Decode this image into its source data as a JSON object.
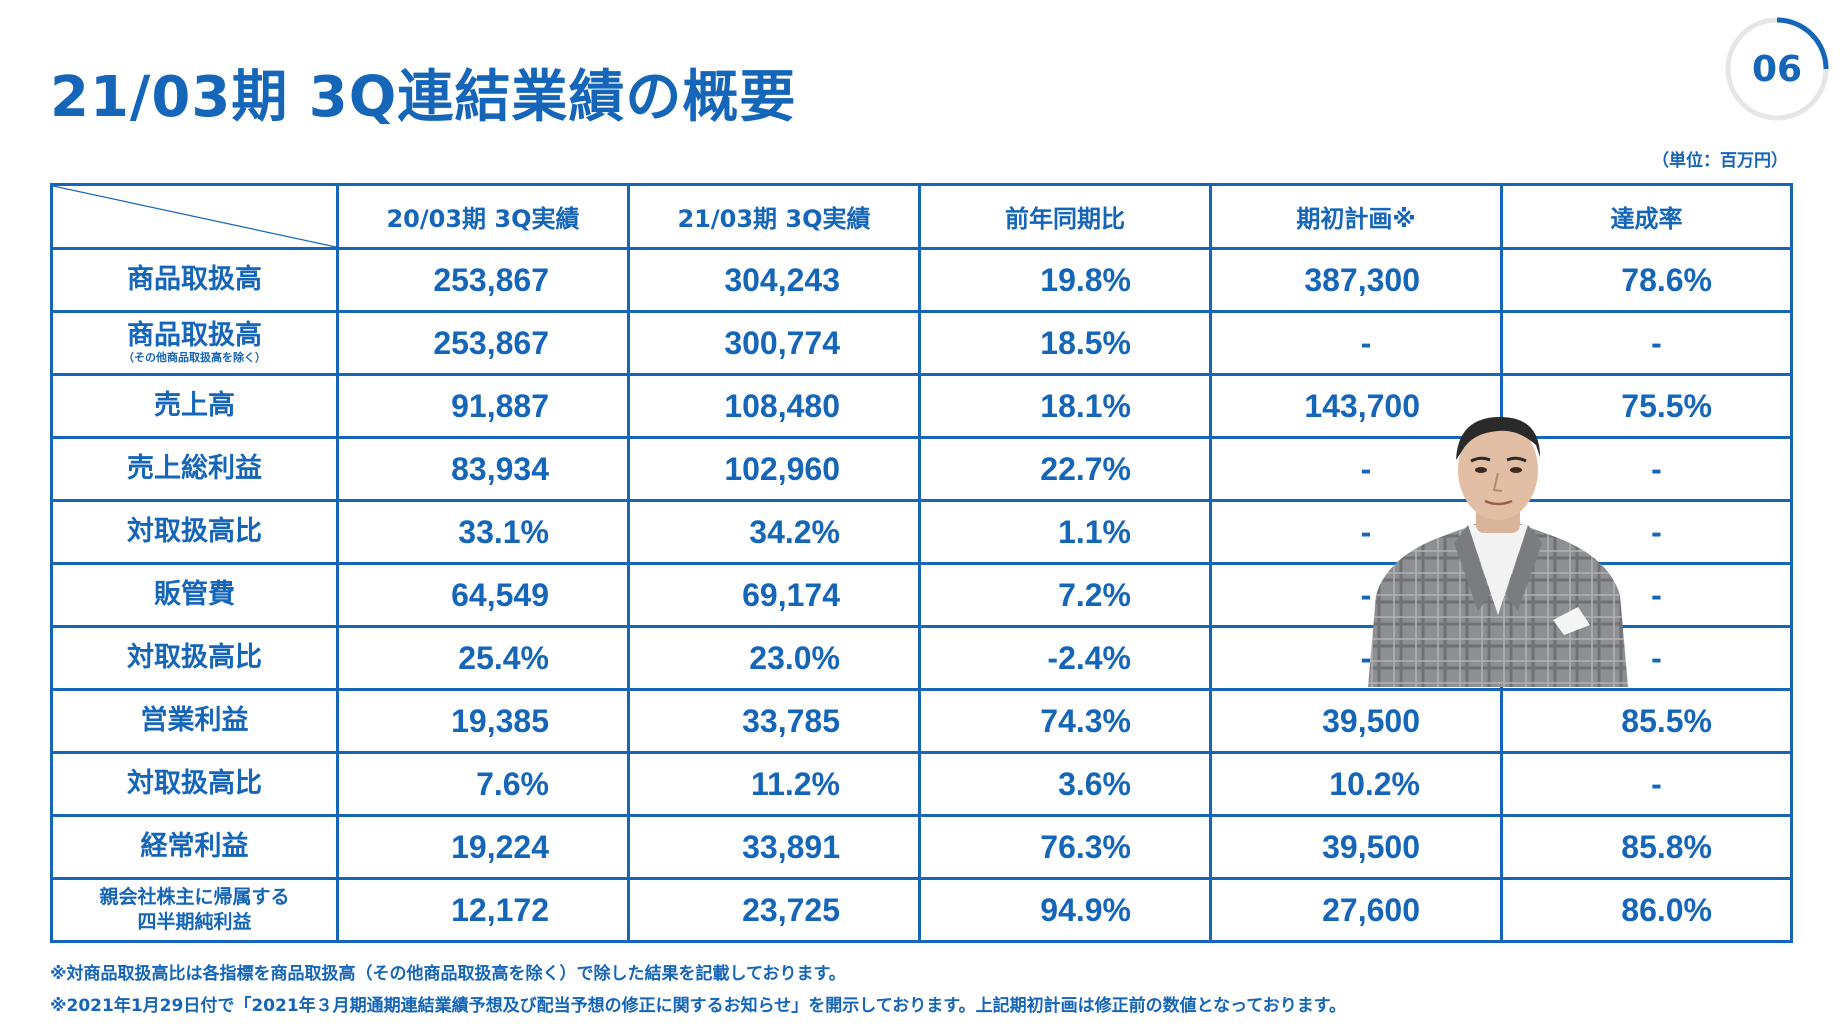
{
  "title": "21/03期 3Q連結業績の概要",
  "page_number": "06",
  "unit": "（単位：百万円）",
  "table": {
    "headers": [
      "20/03期 3Q実績",
      "21/03期 3Q実績",
      "前年同期比",
      "期初計画※",
      "達成率"
    ],
    "rows": [
      {
        "label": "商品取扱高",
        "sub": "",
        "values": [
          "253,867",
          "304,243",
          "19.8%",
          "387,300",
          "78.6%"
        ]
      },
      {
        "label": "商品取扱高",
        "sub": "（その他商品取扱高を除く）",
        "values": [
          "253,867",
          "300,774",
          "18.5%",
          "-",
          "-"
        ]
      },
      {
        "label": "売上高",
        "sub": "",
        "values": [
          "91,887",
          "108,480",
          "18.1%",
          "143,700",
          "75.5%"
        ]
      },
      {
        "label": "売上総利益",
        "sub": "",
        "values": [
          "83,934",
          "102,960",
          "22.7%",
          "-",
          "-"
        ]
      },
      {
        "label": "対取扱高比",
        "sub": "",
        "values": [
          "33.1%",
          "34.2%",
          "1.1%",
          "-",
          "-"
        ]
      },
      {
        "label": "販管費",
        "sub": "",
        "values": [
          "64,549",
          "69,174",
          "7.2%",
          "-",
          "-"
        ]
      },
      {
        "label": "対取扱高比",
        "sub": "",
        "values": [
          "25.4%",
          "23.0%",
          "-2.4%",
          "-",
          "-"
        ]
      },
      {
        "label": "営業利益",
        "sub": "",
        "values": [
          "19,385",
          "33,785",
          "74.3%",
          "39,500",
          "85.5%"
        ]
      },
      {
        "label": "対取扱高比",
        "sub": "",
        "values": [
          "7.6%",
          "11.2%",
          "3.6%",
          "10.2%",
          "-"
        ]
      },
      {
        "label": "経常利益",
        "sub": "",
        "values": [
          "19,224",
          "33,891",
          "76.3%",
          "39,500",
          "85.8%"
        ]
      },
      {
        "label": "親会社株主に帰属する",
        "sub": "四半期純利益",
        "values": [
          "12,172",
          "23,725",
          "94.9%",
          "27,600",
          "86.0%"
        ]
      }
    ]
  },
  "notes": [
    "※対商品取扱高比は各指標を商品取扱高（その他商品取扱高を除く）で除した結果を記載しております。",
    "※2021年1月29日付で「2021年３月期通期連結業績予想及び配当予想の修正に関するお知らせ」を開示しております。上記期初計画は修正前の数値となっております。"
  ],
  "colors": {
    "primary": "#1565b8"
  }
}
